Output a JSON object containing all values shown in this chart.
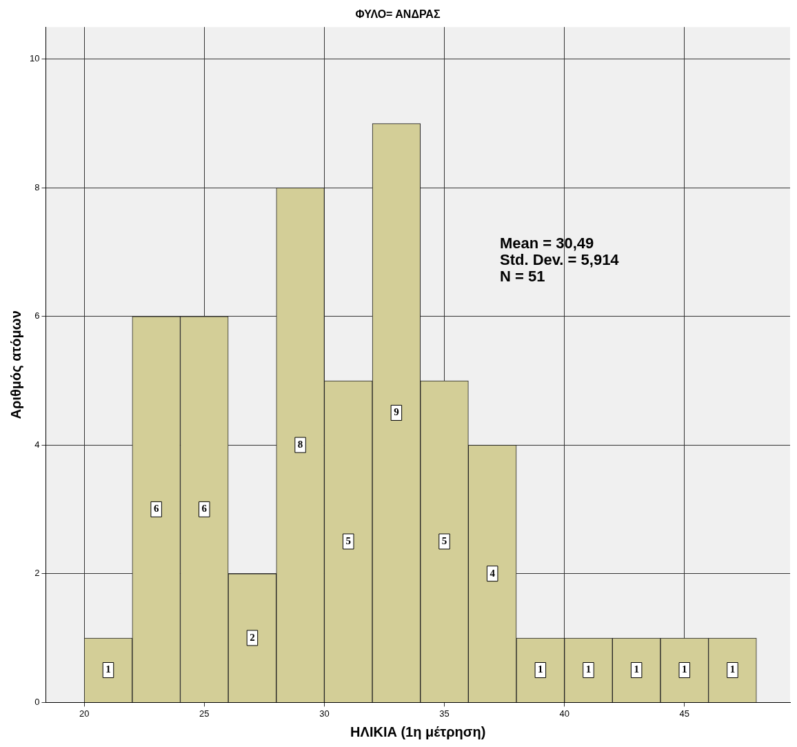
{
  "chart_data": {
    "type": "histogram",
    "title": "ΦΥΛΟ= ΑΝΔΡΑΣ",
    "xlabel": "ΗΛΙΚΙΑ (1η μέτρηση)",
    "ylabel": "Αριθμός ατόμων",
    "bins": [
      20,
      22,
      24,
      26,
      28,
      30,
      32,
      34,
      36,
      38,
      40,
      42,
      44,
      46,
      48
    ],
    "values": [
      1,
      6,
      6,
      2,
      8,
      5,
      9,
      5,
      4,
      1,
      1,
      1,
      1,
      1
    ],
    "color": "#d3ce97",
    "xlim": [
      18.4,
      49.4
    ],
    "xticks": [
      20,
      25,
      30,
      35,
      40,
      45
    ],
    "ylim": [
      0,
      10.5
    ],
    "yticks": [
      0,
      2,
      4,
      6,
      8,
      10
    ],
    "grid": true,
    "legend": false,
    "data_labels": true,
    "annotations": [
      "Mean = 30,49",
      "Std. Dev. = 5,914",
      "N = 51"
    ]
  }
}
